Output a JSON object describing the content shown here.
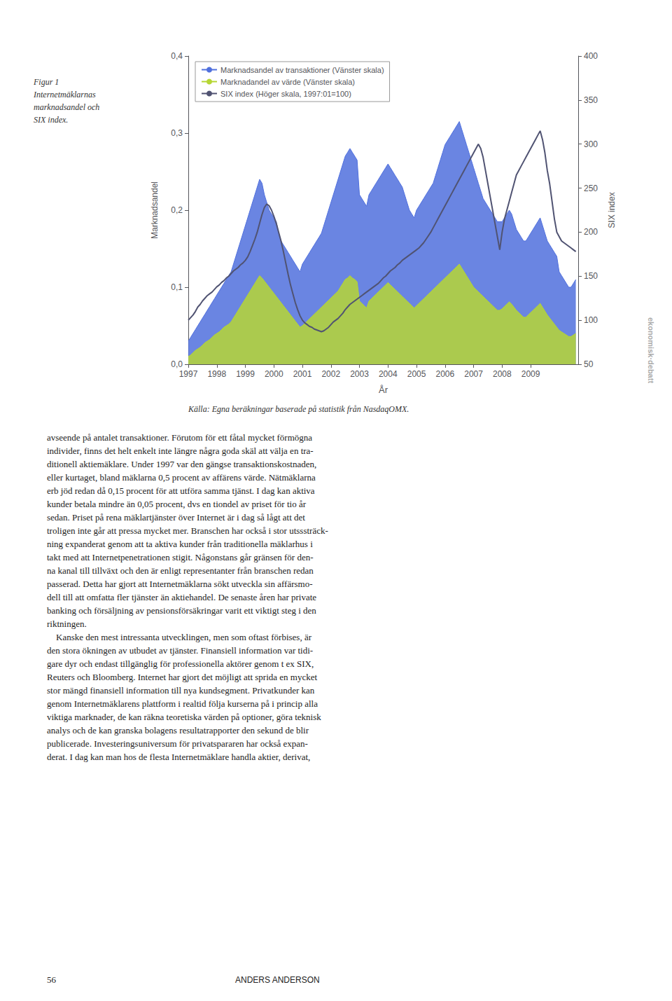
{
  "chart_data": {
    "type": "line",
    "title": "Figur 1\nInternetmäklarnas\nmarknadsandel och\nSIX index.",
    "xlabel": "År",
    "ylabel": "Marknadsandel",
    "y2label": "SIX index",
    "annotations": [
      "Källa: Egna beräkningar baserade på statistik från NasdaqOMX.",
      "avseende på antalet transaktioner. Förutom för ett fåtal mycket förmögna\nindivider, finns det helt enkelt inte längre några goda skäl att välja en tra-\nditionell aktiemäklare. Under 1997 var den gängse transaktionskostnaden,\neller kurtaget, bland mäklarna 0,5 procent av affärens värde. Nätmäklarna\nerb jöd redan då 0,15 procent för att utföra samma tjänst. I dag kan aktiva\nkunder betala mindre än 0,05 procent, dvs en tiondel av priset för tio år\nsedan. Priset på rena mäklartjänster över Internet är i dag så lågt att det\ntroligen inte går att pressa mycket mer. Branschen har också i stor utsssträck-\nning expanderat genom att ta aktiva kunder från traditionella mäklarhus i\ntakt med att Internetpenetrationen stigit. Någonstans går gränsen för den-\nna kanal till tillväxt och den är enligt representanter från branschen redan\npasserad. Detta har gjort att Internetmäklarna sökt utveckla sin affärsmo-\ndell till att omfatta fler tjänster än aktiehandel. De senaste åren har private\nbanking och försäljning av pensionsförsäkringar varit ett viktigt steg i den\nriktningen.\n    Kanske den mest intressanta utvecklingen, men som oftast förbises, är\nden stora ökningen av utbudet av tjänster. Finansiell information var tidi-\ngare dyr och endast tillgänglig för professionella aktörer genom t ex SIX,\nReuters och Bloomberg. Internet har gjort det möjligt att sprida en mycket\nstor mängd finansiell information till nya kundsegment. Privatkunder kan\ngenom Internetmäklarens plattform i realtid följa kurserna på i princip alla\nviktiga marknader, de kan räkna teoretiska värden på optioner, göra teknisk\nanalys och de kan granska bolagens resultatrapporter den sekund de blir\npublicerade. Investeringsuniversum för privatspararen har också expan-\nderat. I dag kan man hos de flesta Internetmäklare handla aktier, derivat,",
      "56",
      "ANDERS ANDERSON",
      "ekonomisk·debatt"
    ],
    "x": [
      1997,
      1997.0833,
      1997.1667,
      1997.25,
      1997.3333,
      1997.4167,
      1997.5,
      1997.5833,
      1997.6667,
      1997.75,
      1997.8333,
      1997.9167,
      1998,
      1998.0833,
      1998.1667,
      1998.25,
      1998.3333,
      1998.4167,
      1998.5,
      1998.5833,
      1998.6667,
      1998.75,
      1998.8333,
      1998.9167,
      1999,
      1999.0833,
      1999.1667,
      1999.25,
      1999.3333,
      1999.4167,
      1999.5,
      1999.5833,
      1999.6667,
      1999.75,
      1999.8333,
      1999.9167,
      2000,
      2000.0833,
      2000.1667,
      2000.25,
      2000.3333,
      2000.4167,
      2000.5,
      2000.5833,
      2000.6667,
      2000.75,
      2000.8333,
      2000.9167,
      2001,
      2001.0833,
      2001.1667,
      2001.25,
      2001.3333,
      2001.4167,
      2001.5,
      2001.5833,
      2001.6667,
      2001.75,
      2001.8333,
      2001.9167,
      2002,
      2002.0833,
      2002.1667,
      2002.25,
      2002.3333,
      2002.4167,
      2002.5,
      2002.5833,
      2002.6667,
      2002.75,
      2002.8333,
      2002.9167,
      2003,
      2003.0833,
      2003.1667,
      2003.25,
      2003.3333,
      2003.4167,
      2003.5,
      2003.5833,
      2003.6667,
      2003.75,
      2003.8333,
      2003.9167,
      2004,
      2004.0833,
      2004.1667,
      2004.25,
      2004.3333,
      2004.4167,
      2004.5,
      2004.5833,
      2004.6667,
      2004.75,
      2004.8333,
      2004.9167,
      2005,
      2005.0833,
      2005.1667,
      2005.25,
      2005.3333,
      2005.4167,
      2005.5,
      2005.5833,
      2005.6667,
      2005.75,
      2005.8333,
      2005.9167,
      2006,
      2006.0833,
      2006.1667,
      2006.25,
      2006.3333,
      2006.4167,
      2006.5,
      2006.5833,
      2006.6667,
      2006.75,
      2006.8333,
      2006.9167,
      2007,
      2007.0833,
      2007.1667,
      2007.25,
      2007.3333,
      2007.4167,
      2007.5,
      2007.5833,
      2007.6667,
      2007.75,
      2007.8333,
      2007.9167,
      2008,
      2008.0833,
      2008.1667,
      2008.25,
      2008.3333,
      2008.4167,
      2008.5,
      2008.5833,
      2008.6667,
      2008.75,
      2008.8333,
      2008.9167,
      2009,
      2009.0833,
      2009.1667,
      2009.25,
      2009.3333,
      2009.4167,
      2009.5,
      2009.5833,
      2009.6667,
      2009.75,
      2009.8333,
      2009.9167,
      2010,
      2010.0833,
      2010.1667,
      2010.25,
      2010.3333,
      2010.4167,
      2010.5,
      2010.5833
    ],
    "xlim": [
      1997,
      2010.6667
    ],
    "xticks": [
      1997,
      1998,
      1999,
      2000,
      2001,
      2002,
      2003,
      2004,
      2005,
      2006,
      2007,
      2008,
      2009
    ],
    "ylim": [
      0.0,
      0.4
    ],
    "yticks": [
      {
        "value": 0.0,
        "label": "0,0"
      },
      {
        "value": 0.1,
        "label": "0,1"
      },
      {
        "value": 0.2,
        "label": "0,2"
      },
      {
        "value": 0.3,
        "label": "0,3"
      },
      {
        "value": 0.4,
        "label": "0,4"
      }
    ],
    "y2lim": [
      50,
      400
    ],
    "y2ticks": [
      50,
      100,
      150,
      200,
      250,
      300,
      350,
      400
    ],
    "grid": false,
    "legend": "upper left",
    "series": [
      {
        "name": "Marknadsandel av transaktioner (Vänster skala)",
        "type": "area",
        "values": [
          0.03,
          0.035,
          0.04,
          0.045,
          0.05,
          0.055,
          0.06,
          0.065,
          0.07,
          0.075,
          0.08,
          0.085,
          0.09,
          0.095,
          0.1,
          0.105,
          0.11,
          0.115,
          0.12,
          0.13,
          0.14,
          0.15,
          0.16,
          0.17,
          0.18,
          0.19,
          0.2,
          0.21,
          0.22,
          0.23,
          0.24,
          0.235,
          0.22,
          0.21,
          0.2,
          0.195,
          0.19,
          0.185,
          0.17,
          0.16,
          0.155,
          0.15,
          0.145,
          0.14,
          0.135,
          0.13,
          0.125,
          0.12,
          0.13,
          0.135,
          0.14,
          0.145,
          0.15,
          0.155,
          0.16,
          0.165,
          0.17,
          0.18,
          0.19,
          0.2,
          0.21,
          0.22,
          0.23,
          0.24,
          0.25,
          0.26,
          0.27,
          0.275,
          0.28,
          0.275,
          0.27,
          0.265,
          0.22,
          0.215,
          0.21,
          0.205,
          0.22,
          0.225,
          0.23,
          0.235,
          0.24,
          0.245,
          0.25,
          0.255,
          0.26,
          0.255,
          0.25,
          0.245,
          0.24,
          0.235,
          0.23,
          0.22,
          0.21,
          0.2,
          0.195,
          0.19,
          0.2,
          0.205,
          0.21,
          0.215,
          0.22,
          0.225,
          0.23,
          0.235,
          0.245,
          0.255,
          0.265,
          0.275,
          0.285,
          0.29,
          0.295,
          0.3,
          0.305,
          0.31,
          0.315,
          0.305,
          0.295,
          0.285,
          0.275,
          0.265,
          0.255,
          0.245,
          0.235,
          0.225,
          0.215,
          0.21,
          0.205,
          0.2,
          0.195,
          0.19,
          0.185,
          0.185,
          0.185,
          0.19,
          0.195,
          0.2,
          0.195,
          0.185,
          0.175,
          0.17,
          0.165,
          0.16,
          0.16,
          0.165,
          0.17,
          0.175,
          0.18,
          0.185,
          0.19,
          0.18,
          0.17,
          0.16,
          0.155,
          0.15,
          0.145,
          0.14,
          0.12,
          0.115,
          0.11,
          0.105,
          0.1,
          0.1,
          0.105,
          0.11
        ]
      },
      {
        "name": "Marknadandel av värde (Vänster skala)",
        "type": "area",
        "values": [
          0.01,
          0.012,
          0.015,
          0.018,
          0.02,
          0.022,
          0.025,
          0.028,
          0.03,
          0.032,
          0.035,
          0.038,
          0.04,
          0.042,
          0.045,
          0.048,
          0.05,
          0.052,
          0.055,
          0.06,
          0.065,
          0.07,
          0.075,
          0.08,
          0.085,
          0.09,
          0.095,
          0.1,
          0.105,
          0.11,
          0.115,
          0.112,
          0.108,
          0.104,
          0.1,
          0.096,
          0.092,
          0.088,
          0.084,
          0.08,
          0.076,
          0.072,
          0.068,
          0.064,
          0.06,
          0.056,
          0.052,
          0.048,
          0.05,
          0.053,
          0.056,
          0.059,
          0.062,
          0.065,
          0.068,
          0.071,
          0.074,
          0.077,
          0.08,
          0.083,
          0.086,
          0.089,
          0.092,
          0.095,
          0.1,
          0.105,
          0.11,
          0.112,
          0.115,
          0.112,
          0.11,
          0.107,
          0.082,
          0.079,
          0.076,
          0.073,
          0.082,
          0.085,
          0.088,
          0.091,
          0.094,
          0.097,
          0.1,
          0.103,
          0.106,
          0.103,
          0.1,
          0.097,
          0.094,
          0.091,
          0.088,
          0.085,
          0.082,
          0.079,
          0.076,
          0.073,
          0.076,
          0.079,
          0.082,
          0.085,
          0.088,
          0.091,
          0.094,
          0.097,
          0.1,
          0.103,
          0.106,
          0.109,
          0.112,
          0.115,
          0.118,
          0.121,
          0.124,
          0.127,
          0.13,
          0.125,
          0.12,
          0.115,
          0.11,
          0.105,
          0.1,
          0.097,
          0.094,
          0.091,
          0.088,
          0.085,
          0.082,
          0.079,
          0.076,
          0.073,
          0.07,
          0.07,
          0.072,
          0.075,
          0.078,
          0.081,
          0.078,
          0.074,
          0.07,
          0.067,
          0.064,
          0.061,
          0.061,
          0.064,
          0.067,
          0.07,
          0.073,
          0.076,
          0.079,
          0.074,
          0.069,
          0.064,
          0.06,
          0.056,
          0.052,
          0.048,
          0.044,
          0.042,
          0.04,
          0.038,
          0.036,
          0.036,
          0.038,
          0.04
        ]
      },
      {
        "name": "SIX index (Höger skala, 1997:01=100)",
        "type": "line",
        "axis": "y2",
        "values": [
          100,
          103,
          106,
          110,
          115,
          118,
          122,
          125,
          128,
          130,
          132,
          135,
          138,
          140,
          143,
          145,
          148,
          150,
          153,
          156,
          158,
          160,
          163,
          165,
          168,
          172,
          178,
          185,
          192,
          200,
          210,
          220,
          228,
          232,
          230,
          225,
          218,
          210,
          200,
          190,
          178,
          165,
          152,
          140,
          130,
          120,
          112,
          105,
          100,
          97,
          95,
          93,
          92,
          90,
          89,
          88,
          87,
          88,
          90,
          92,
          95,
          98,
          100,
          102,
          105,
          108,
          112,
          115,
          118,
          120,
          122,
          124,
          126,
          128,
          130,
          132,
          134,
          136,
          138,
          140,
          142,
          145,
          148,
          150,
          153,
          156,
          158,
          160,
          163,
          165,
          168,
          170,
          172,
          174,
          176,
          178,
          180,
          182,
          185,
          188,
          192,
          196,
          200,
          205,
          210,
          215,
          220,
          225,
          230,
          235,
          240,
          245,
          250,
          255,
          260,
          265,
          270,
          275,
          280,
          285,
          290,
          295,
          300,
          295,
          285,
          270,
          255,
          240,
          225,
          210,
          195,
          180,
          200,
          215,
          225,
          235,
          245,
          255,
          265,
          270,
          275,
          280,
          285,
          290,
          295,
          300,
          305,
          310,
          315,
          305,
          290,
          270,
          255,
          235,
          215,
          200,
          195,
          190,
          188,
          186,
          184,
          182,
          180,
          178
        ]
      }
    ]
  }
}
